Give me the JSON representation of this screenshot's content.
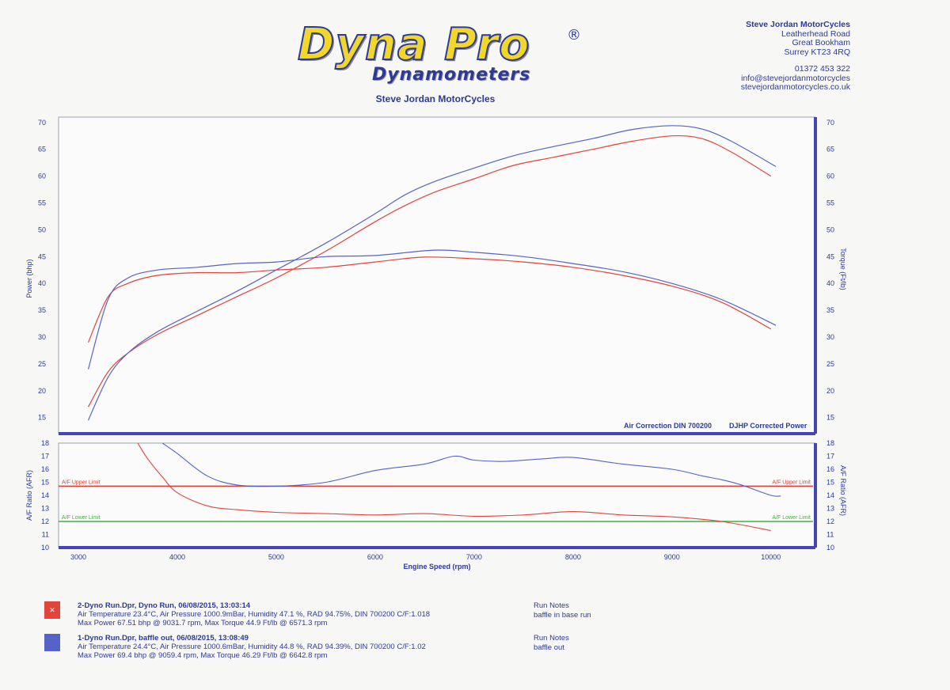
{
  "header": {
    "logo_main": "Dyna Pro",
    "logo_reg": "®",
    "logo_sub": "Dynamometers",
    "subtitle": "Steve Jordan MotorCycles"
  },
  "address": {
    "company": "Steve Jordan MotorCycles",
    "line1": "Leatherhead Road",
    "line2": "Great Bookham",
    "line3": "Surrey KT23 4RQ",
    "phone": "01372 453 322",
    "email": "info@stevejordanmotorcycles",
    "web": "stevejordanmotorcycles.co.uk"
  },
  "colors": {
    "red_run": "#e2433b",
    "blue_run": "#5563c8",
    "frame": "#4545b8",
    "upper_limit": "#d9423a",
    "lower_limit": "#3fb33f"
  },
  "runs": [
    {
      "title": "2-Dyno Run.Dpr,   Dyno Run,   06/08/2015,   13:03:14",
      "line2": "Air Temperature 23.4°C, Air Pressure 1000.9mBar, Humidity 47.1 %, RAD 94.75%,   DIN 700200  C/F:1.018",
      "line3": "Max Power 67.51 bhp @ 9031.7 rpm,  Max Torque 44.9 Ft/lb @ 6571.3 rpm",
      "notes_label": "Run Notes",
      "notes": "baffle in base run"
    },
    {
      "title": "1-Dyno Run.Dpr,   baffle out,   06/08/2015,   13:08:49",
      "line2": "Air Temperature 24.4°C, Air Pressure 1000.6mBar, Humidity 44.8 %, RAD 94.39%,   DIN 700200  C/F:1.02",
      "line3": "Max Power 69.4 bhp @ 9059.4 rpm,  Max Torque 46.29 Ft/lb @ 6642.8 rpm",
      "notes_label": "Run Notes",
      "notes": "baffle out"
    }
  ],
  "chart_data": [
    {
      "type": "line",
      "ylabel": "Power (bhp)",
      "ylabel_right": "Torque (Ft/lb)",
      "ylim": [
        12,
        71
      ],
      "xlim": [
        2800,
        10450
      ],
      "yticks": [
        15,
        20,
        25,
        30,
        35,
        40,
        45,
        50,
        55,
        60,
        65,
        70
      ],
      "annotation_left": "Air Correction DIN 700200",
      "annotation_right": "DJHP Corrected Power",
      "series": [
        {
          "metric": "power",
          "run": "red",
          "x": [
            3100,
            3300,
            3500,
            3800,
            4200,
            4600,
            5000,
            5500,
            6000,
            6300,
            6600,
            7000,
            7400,
            7800,
            8200,
            8600,
            9000,
            9300,
            9600,
            10000
          ],
          "y": [
            17,
            23.5,
            27,
            30.5,
            34,
            37.5,
            41,
            46,
            51.5,
            54.5,
            57,
            59.5,
            62,
            63.5,
            65,
            66.5,
            67.5,
            67,
            64.5,
            60
          ]
        },
        {
          "metric": "power",
          "run": "blue",
          "x": [
            3100,
            3300,
            3500,
            3800,
            4200,
            4600,
            5000,
            5500,
            6000,
            6300,
            6600,
            7000,
            7400,
            7800,
            8200,
            8600,
            9000,
            9300,
            9600,
            10050
          ],
          "y": [
            14.5,
            22.5,
            27,
            31,
            34.8,
            38.5,
            42.5,
            47.5,
            53,
            56.5,
            59,
            61.5,
            63.8,
            65.5,
            67,
            68.7,
            69.4,
            68.8,
            66.5,
            61.8
          ]
        },
        {
          "metric": "torque",
          "run": "red",
          "x": [
            3100,
            3300,
            3500,
            3800,
            4200,
            4600,
            5000,
            5500,
            6000,
            6500,
            7000,
            7500,
            8000,
            8500,
            9000,
            9500,
            10000
          ],
          "y": [
            29,
            37.5,
            40,
            41.5,
            42,
            42,
            42.5,
            43,
            44,
            44.9,
            44.6,
            44,
            43,
            41.5,
            39.5,
            36.5,
            31.5
          ]
        },
        {
          "metric": "torque",
          "run": "blue",
          "x": [
            3100,
            3300,
            3500,
            3800,
            4200,
            4600,
            5000,
            5500,
            6000,
            6600,
            7000,
            7500,
            8000,
            8500,
            9000,
            9500,
            10050
          ],
          "y": [
            24,
            37,
            41,
            42.5,
            43,
            43.7,
            44,
            45,
            45.2,
            46.2,
            45.8,
            45,
            43.7,
            42.2,
            40,
            37,
            32.2
          ]
        }
      ]
    },
    {
      "type": "line",
      "ylabel": "A/F Ratio (AFR)",
      "ylabel_right": "A/F Ratio (AFR)",
      "xlabel": "Engine Speed (rpm)",
      "ylim": [
        10,
        18
      ],
      "xlim": [
        2800,
        10450
      ],
      "yticks": [
        10,
        11,
        12,
        13,
        14,
        15,
        16,
        17,
        18
      ],
      "xticks": [
        3000,
        4000,
        5000,
        6000,
        7000,
        8000,
        9000,
        10000
      ],
      "upper_limit": {
        "value": 14.7,
        "label": "A/F Upper Limit"
      },
      "lower_limit": {
        "value": 12.0,
        "label": "A/F Lower Limit"
      },
      "series": [
        {
          "run": "red",
          "x": [
            3600,
            3700,
            3850,
            4000,
            4300,
            4600,
            5000,
            5500,
            6000,
            6500,
            7000,
            7500,
            8000,
            8500,
            9000,
            9500,
            10000
          ],
          "y": [
            18,
            16.8,
            15.4,
            14.2,
            13.2,
            12.9,
            12.7,
            12.6,
            12.5,
            12.6,
            12.4,
            12.5,
            12.75,
            12.5,
            12.35,
            12.0,
            11.3
          ]
        },
        {
          "run": "blue",
          "x": [
            3850,
            4000,
            4300,
            4600,
            5000,
            5500,
            6000,
            6500,
            6800,
            7000,
            7300,
            7700,
            8000,
            8500,
            9000,
            9300,
            9500,
            9700,
            10000,
            10100
          ],
          "y": [
            18,
            17.2,
            15.5,
            14.8,
            14.7,
            15.0,
            15.9,
            16.4,
            17.0,
            16.7,
            16.6,
            16.8,
            16.9,
            16.4,
            16.0,
            15.5,
            15.2,
            14.8,
            14.0,
            13.95
          ]
        }
      ]
    }
  ]
}
